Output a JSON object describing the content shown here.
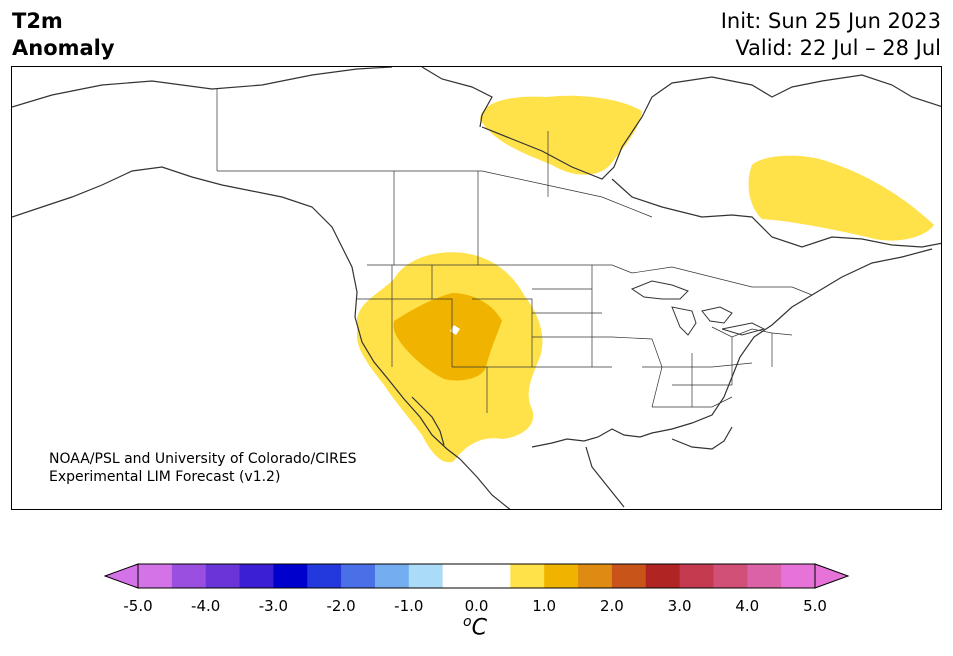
{
  "header": {
    "variable": "T2m",
    "field": "Anomaly",
    "init": "Init: Sun 25 Jun 2023",
    "valid": "Valid: 22 Jul – 28 Jul"
  },
  "credit": {
    "line1": "NOAA/PSL and University of Colorado/CIRES",
    "line2": "Experimental LIM Forecast (v1.2)"
  },
  "colorbar": {
    "unit_symbol": "o",
    "unit_letter": "C",
    "ticks": [
      "-5.0",
      "-4.0",
      "-3.0",
      "-2.0",
      "-1.0",
      "0.0",
      "1.0",
      "2.0",
      "3.0",
      "4.0",
      "5.0"
    ],
    "colors": [
      "#d473e8",
      "#9b4fe0",
      "#6a35d8",
      "#3b1fd2",
      "#0000cc",
      "#2439dd",
      "#4b6fe6",
      "#74aef0",
      "#abdcf7",
      "#ffffff",
      "#ffffff",
      "#ffe24a",
      "#f0b400",
      "#df8a12",
      "#c8541a",
      "#b02424",
      "#c43a4e",
      "#d05078",
      "#dc62a8",
      "#e573d8"
    ],
    "under_color": "#d473e8",
    "over_color": "#e573d8"
  },
  "map": {
    "region": "North America",
    "anomaly_colors": {
      "plus_0_5_to_1": "#ffe24a",
      "plus_1_to_1_5": "#f0b400"
    }
  }
}
